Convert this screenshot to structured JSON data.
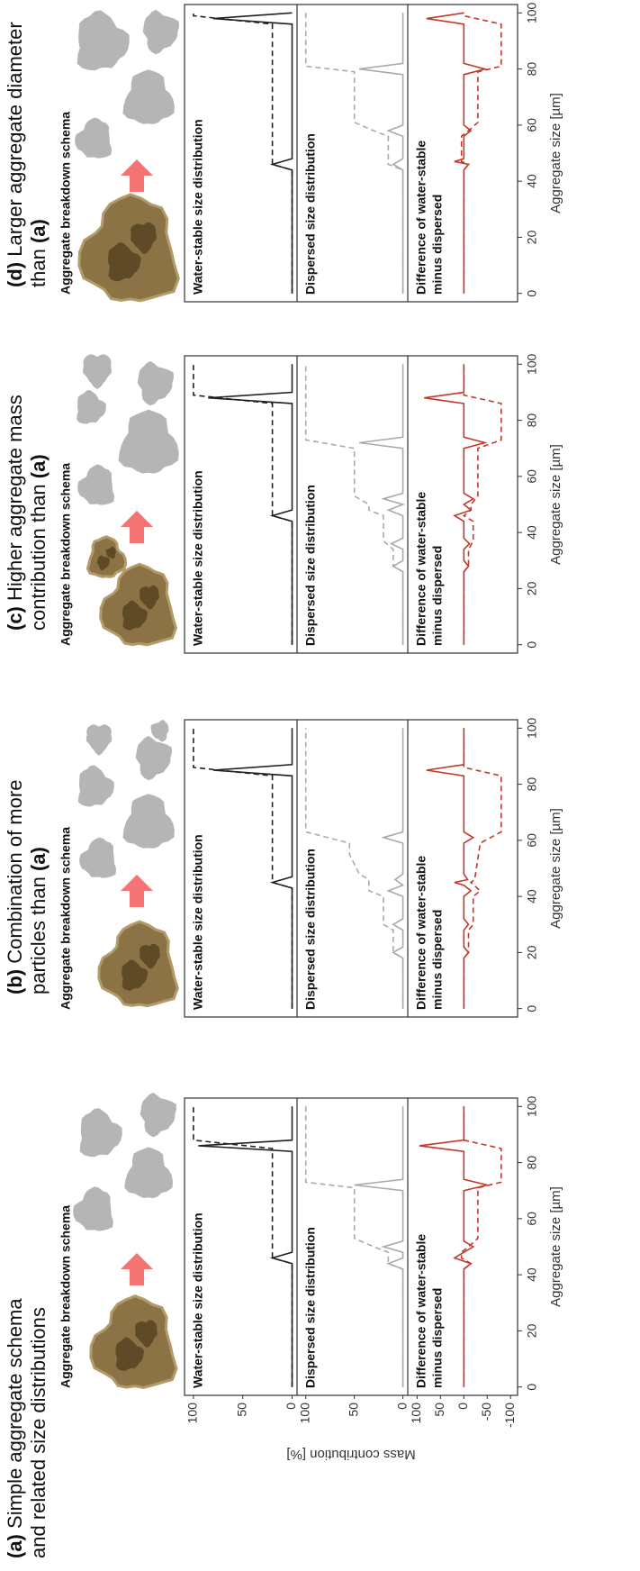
{
  "y_axis": {
    "label": "Mass contribution [%]",
    "subplots": [
      {
        "ylim": [
          -5,
          109
        ],
        "yticks": [
          0,
          50,
          100
        ]
      },
      {
        "ylim": [
          -5,
          109
        ],
        "yticks": [
          0,
          50,
          100
        ]
      },
      {
        "ylim": [
          -115,
          120
        ],
        "yticks": [
          -100,
          -50,
          0,
          50,
          100
        ]
      }
    ]
  },
  "chart_data": [
    {
      "type": "line",
      "title_letter": "(a)",
      "title_line1": "Simple aggregate schema",
      "title_line2": "and related size distributions",
      "schema_title": "Aggregate breakdown schema",
      "x_label": "Aggregate size [µm]",
      "xlim": [
        -3,
        103
      ],
      "xticks": [
        0,
        20,
        40,
        60,
        80,
        100
      ],
      "subplots": [
        {
          "label_lines": [
            "Water-stable size distribution"
          ],
          "series": [
            {
              "color": "#222222",
              "dash": false,
              "x": [
                0,
                44,
                46,
                48,
                84,
                86,
                88,
                100
              ],
              "values": [
                0,
                0,
                20,
                0,
                0,
                95,
                0,
                0
              ]
            },
            {
              "color": "#222222",
              "dash": true,
              "x": [
                0,
                44,
                46,
                85,
                88,
                100
              ],
              "values": [
                0,
                0,
                20,
                20,
                100,
                100
              ]
            }
          ]
        },
        {
          "label_lines": [
            "Dispersed size distribution"
          ],
          "series": [
            {
              "color": "#aaaaaa",
              "dash": false,
              "x": [
                0,
                42,
                44,
                46,
                48,
                50,
                52,
                70,
                72,
                74,
                100
              ],
              "values": [
                0,
                0,
                15,
                0,
                0,
                20,
                0,
                0,
                50,
                0,
                0
              ]
            },
            {
              "color": "#aaaaaa",
              "dash": true,
              "x": [
                0,
                42,
                44,
                48,
                50,
                53,
                71,
                73,
                100
              ],
              "values": [
                0,
                0,
                15,
                15,
                30,
                50,
                50,
                100,
                100
              ]
            }
          ]
        },
        {
          "label_lines": [
            "Difference of water-stable",
            "minus dispersed"
          ],
          "series": [
            {
              "color": "#c0392b",
              "dash": false,
              "x": [
                0,
                42,
                44,
                46,
                48,
                50,
                52,
                70,
                72,
                74,
                84,
                86,
                88,
                100
              ],
              "values": [
                0,
                0,
                -15,
                20,
                0,
                -20,
                0,
                0,
                -50,
                0,
                0,
                95,
                0,
                0
              ]
            },
            {
              "color": "#c0392b",
              "dash": true,
              "x": [
                0,
                42,
                44,
                46,
                48,
                50,
                53,
                71,
                73,
                85,
                88,
                100
              ],
              "values": [
                0,
                0,
                -15,
                5,
                5,
                -10,
                -30,
                -30,
                -80,
                -80,
                0,
                0
              ]
            }
          ]
        }
      ]
    },
    {
      "type": "line",
      "title_letter": "(b)",
      "title_line1": "Combination of more",
      "title_line2": "particles than",
      "title_ref": "(a)",
      "schema_title": "Aggregate breakdown schema",
      "x_label": "Aggregate size [µm]",
      "xlim": [
        -3,
        103
      ],
      "xticks": [
        0,
        20,
        40,
        60,
        80,
        100
      ],
      "subplots": [
        {
          "label_lines": [
            "Water-stable size distribution"
          ],
          "series": [
            {
              "color": "#222222",
              "dash": false,
              "x": [
                0,
                43,
                45,
                47,
                83,
                85,
                87,
                100
              ],
              "values": [
                0,
                0,
                20,
                0,
                0,
                80,
                0,
                0
              ]
            },
            {
              "color": "#222222",
              "dash": true,
              "x": [
                0,
                43,
                45,
                83,
                86,
                100
              ],
              "values": [
                0,
                0,
                20,
                20,
                100,
                100
              ]
            }
          ]
        },
        {
          "label_lines": [
            "Dispersed size distribution"
          ],
          "series": [
            {
              "color": "#aaaaaa",
              "dash": false,
              "x": [
                0,
                18,
                20,
                22,
                28,
                30,
                32,
                40,
                42,
                44,
                46,
                48,
                59,
                61,
                63,
                100
              ],
              "values": [
                0,
                0,
                10,
                0,
                0,
                10,
                0,
                0,
                15,
                0,
                8,
                0,
                0,
                20,
                0,
                0
              ]
            },
            {
              "color": "#aaaaaa",
              "dash": true,
              "x": [
                0,
                18,
                20,
                28,
                30,
                40,
                42,
                46,
                48,
                55,
                59,
                63,
                100
              ],
              "values": [
                0,
                0,
                10,
                10,
                20,
                20,
                35,
                35,
                45,
                55,
                55,
                100,
                100
              ]
            }
          ]
        },
        {
          "label_lines": [
            "Difference of water-stable",
            "minus dispersed"
          ],
          "series": [
            {
              "color": "#c0392b",
              "dash": false,
              "x": [
                0,
                18,
                20,
                22,
                28,
                30,
                32,
                40,
                42,
                44,
                45,
                46,
                48,
                59,
                61,
                63,
                83,
                85,
                87,
                100
              ],
              "values": [
                0,
                0,
                -10,
                0,
                0,
                -10,
                0,
                0,
                -15,
                0,
                20,
                -8,
                0,
                0,
                -20,
                0,
                0,
                80,
                0,
                0
              ]
            },
            {
              "color": "#c0392b",
              "dash": true,
              "x": [
                0,
                18,
                20,
                28,
                30,
                40,
                42,
                45,
                46,
                48,
                59,
                63,
                83,
                86,
                100
              ],
              "values": [
                0,
                0,
                -10,
                -10,
                -20,
                -20,
                -35,
                -15,
                -23,
                -25,
                -35,
                -80,
                -80,
                0,
                0
              ]
            }
          ]
        }
      ]
    },
    {
      "type": "line",
      "title_letter": "(c)",
      "title_line1": "Higher aggregate mass",
      "title_line2": "contribution than",
      "title_ref": "(a)",
      "schema_title": "Aggregate breakdown schema",
      "x_label": "Aggregate size [µm]",
      "xlim": [
        -3,
        103
      ],
      "xticks": [
        0,
        20,
        40,
        60,
        80,
        100
      ],
      "subplots": [
        {
          "label_lines": [
            "Water-stable size distribution"
          ],
          "series": [
            {
              "color": "#222222",
              "dash": false,
              "x": [
                0,
                44,
                46,
                48,
                86,
                88,
                90,
                100
              ],
              "values": [
                0,
                0,
                20,
                0,
                0,
                85,
                0,
                0
              ]
            },
            {
              "color": "#222222",
              "dash": true,
              "x": [
                0,
                44,
                46,
                86,
                89,
                100
              ],
              "values": [
                0,
                0,
                20,
                20,
                100,
                100
              ]
            }
          ]
        },
        {
          "label_lines": [
            "Dispersed size distribution"
          ],
          "series": [
            {
              "color": "#aaaaaa",
              "dash": false,
              "x": [
                0,
                26,
                28,
                30,
                34,
                36,
                38,
                46,
                48,
                50,
                52,
                54,
                70,
                72,
                74,
                100
              ],
              "values": [
                0,
                0,
                10,
                0,
                0,
                12,
                0,
                0,
                15,
                0,
                20,
                0,
                0,
                45,
                0,
                0
              ]
            },
            {
              "color": "#aaaaaa",
              "dash": true,
              "x": [
                0,
                26,
                28,
                34,
                37,
                46,
                48,
                50,
                53,
                70,
                73,
                100
              ],
              "values": [
                0,
                0,
                10,
                10,
                20,
                20,
                35,
                35,
                50,
                50,
                100,
                100
              ]
            }
          ]
        },
        {
          "label_lines": [
            "Difference of water-stable",
            "minus dispersed"
          ],
          "series": [
            {
              "color": "#c0392b",
              "dash": false,
              "x": [
                0,
                26,
                28,
                30,
                34,
                36,
                38,
                44,
                46,
                48,
                50,
                52,
                54,
                70,
                72,
                74,
                86,
                88,
                90,
                100
              ],
              "values": [
                0,
                0,
                -10,
                0,
                0,
                -12,
                0,
                0,
                20,
                -15,
                0,
                -20,
                0,
                0,
                -45,
                0,
                0,
                85,
                0,
                0
              ]
            },
            {
              "color": "#c0392b",
              "dash": true,
              "x": [
                0,
                26,
                28,
                34,
                37,
                44,
                46,
                48,
                50,
                53,
                70,
                73,
                86,
                89,
                100
              ],
              "values": [
                0,
                0,
                -10,
                -10,
                -20,
                -20,
                0,
                -15,
                -15,
                -30,
                -30,
                -80,
                -80,
                0,
                0
              ]
            }
          ]
        }
      ]
    },
    {
      "type": "line",
      "title_letter": "(d)",
      "title_line1": "Larger aggregate diameter",
      "title_line2": "than",
      "title_ref": "(a)",
      "schema_title": "Aggregate breakdown schema",
      "x_label": "Aggregate size [µm]",
      "xlim": [
        -3,
        103
      ],
      "xticks": [
        0,
        20,
        40,
        60,
        80,
        100
      ],
      "subplots": [
        {
          "label_lines": [
            "Water-stable size distribution"
          ],
          "series": [
            {
              "color": "#222222",
              "dash": false,
              "x": [
                0,
                44,
                46,
                48,
                96,
                98,
                100
              ],
              "values": [
                0,
                0,
                20,
                0,
                0,
                80,
                0
              ]
            },
            {
              "color": "#222222",
              "dash": true,
              "x": [
                0,
                44,
                46,
                96,
                99,
                100
              ],
              "values": [
                0,
                0,
                20,
                20,
                100,
                100
              ]
            }
          ]
        },
        {
          "label_lines": [
            "Dispersed size distribution"
          ],
          "series": [
            {
              "color": "#aaaaaa",
              "dash": false,
              "x": [
                0,
                44,
                46,
                48,
                56,
                58,
                60,
                78,
                80,
                82,
                100
              ],
              "values": [
                0,
                0,
                10,
                0,
                0,
                15,
                0,
                0,
                45,
                0,
                0
              ]
            },
            {
              "color": "#aaaaaa",
              "dash": true,
              "x": [
                0,
                44,
                46,
                56,
                58,
                61,
                79,
                81,
                100
              ],
              "values": [
                0,
                0,
                15,
                15,
                30,
                50,
                50,
                100,
                100
              ]
            }
          ]
        },
        {
          "label_lines": [
            "Difference of water-stable",
            "minus dispersed"
          ],
          "series": [
            {
              "color": "#c0392b",
              "dash": false,
              "x": [
                0,
                44,
                46,
                47,
                48,
                56,
                58,
                60,
                78,
                80,
                82,
                96,
                98,
                100
              ],
              "values": [
                0,
                0,
                -10,
                20,
                0,
                0,
                -15,
                0,
                0,
                -45,
                0,
                0,
                80,
                0
              ]
            },
            {
              "color": "#c0392b",
              "dash": true,
              "x": [
                0,
                44,
                46,
                47,
                56,
                58,
                61,
                79,
                81,
                96,
                99,
                100
              ],
              "values": [
                0,
                0,
                -10,
                5,
                5,
                -10,
                -30,
                -30,
                -80,
                -80,
                0,
                0
              ]
            }
          ]
        }
      ]
    }
  ]
}
